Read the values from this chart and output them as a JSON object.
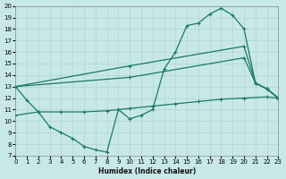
{
  "xlabel": "Humidex (Indice chaleur)",
  "xlim": [
    0,
    23
  ],
  "ylim": [
    7,
    20
  ],
  "yticks": [
    7,
    8,
    9,
    10,
    11,
    12,
    13,
    14,
    15,
    16,
    17,
    18,
    19,
    20
  ],
  "xticks": [
    0,
    1,
    2,
    3,
    4,
    5,
    6,
    7,
    8,
    9,
    10,
    11,
    12,
    13,
    14,
    15,
    16,
    17,
    18,
    19,
    20,
    21,
    22,
    23
  ],
  "bg_color": "#c8e8e8",
  "grid_color": "#add4d4",
  "line_color": "#1a7868",
  "curve1_x": [
    0,
    1,
    2,
    3,
    4,
    5,
    6,
    7,
    8,
    9,
    10,
    11,
    12,
    13,
    14,
    15,
    16,
    17,
    18,
    19,
    20,
    21,
    22,
    23
  ],
  "curve1_y": [
    13.0,
    11.8,
    10.8,
    9.5,
    9.0,
    8.5,
    7.8,
    7.5,
    7.3,
    11.0,
    10.2,
    10.5,
    11.0,
    14.5,
    16.0,
    18.3,
    18.5,
    19.3,
    19.8,
    19.2,
    18.0,
    13.3,
    12.8,
    12.0
  ],
  "curve2_x": [
    0,
    10,
    20,
    21,
    22,
    23
  ],
  "curve2_y": [
    13.0,
    14.8,
    16.5,
    13.3,
    12.8,
    12.0
  ],
  "curve3_x": [
    0,
    10,
    20,
    21,
    22,
    23
  ],
  "curve3_y": [
    13.0,
    13.8,
    15.5,
    13.3,
    12.8,
    12.0
  ],
  "curve4_x": [
    0,
    2,
    4,
    6,
    8,
    10,
    12,
    14,
    16,
    18,
    20,
    22,
    23
  ],
  "curve4_y": [
    10.5,
    10.8,
    10.8,
    10.8,
    10.9,
    11.1,
    11.3,
    11.5,
    11.7,
    11.9,
    12.0,
    12.1,
    12.0
  ]
}
